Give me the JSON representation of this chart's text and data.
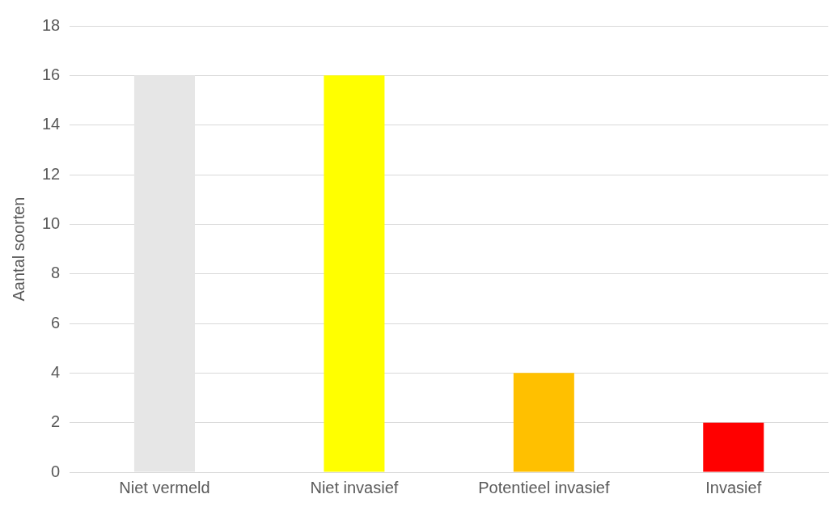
{
  "chart_data": {
    "type": "bar",
    "ylabel": "Aantal soorten",
    "categories": [
      "Niet vermeld",
      "Niet invasief",
      "Potentieel invasief",
      "Invasief"
    ],
    "values": [
      16,
      16,
      4,
      2
    ],
    "colors": [
      "#e6e6e6",
      "#ffff00",
      "#ffc000",
      "#ff0000"
    ],
    "ylim": [
      0,
      18
    ],
    "yticks": [
      0,
      2,
      4,
      6,
      8,
      10,
      12,
      14,
      16,
      18
    ],
    "grid": "y",
    "legend": false
  }
}
